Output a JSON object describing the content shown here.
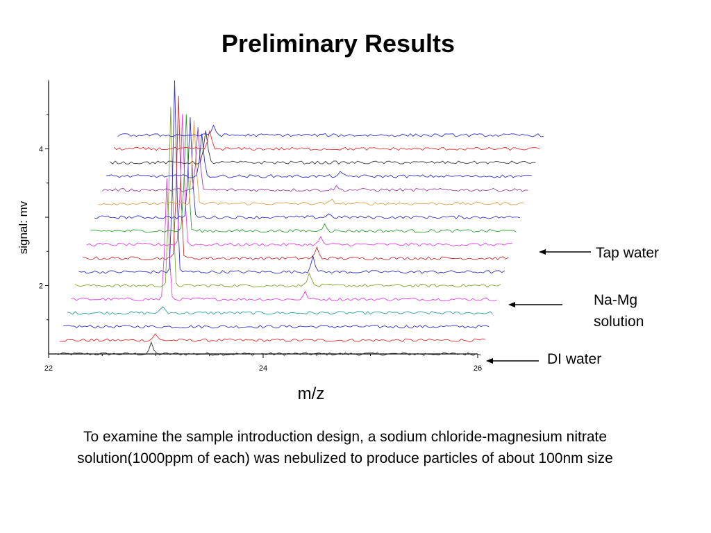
{
  "slide": {
    "title": "Preliminary Results",
    "caption_line1": "To examine the sample introduction design, a sodium chloride-magnesium nitrate",
    "caption_line2": "solution(1000ppm of each) was nebulized to produce particles of about 100nm size"
  },
  "chart_data": {
    "type": "line",
    "style": "waterfall",
    "title": "",
    "xlabel": "m/z",
    "ylabel": "signal: mv",
    "xlim": [
      22,
      26
    ],
    "ylim": [
      1,
      5
    ],
    "x_ticks": [
      "22",
      "24",
      "26"
    ],
    "y_ticks": [
      "2",
      "4"
    ],
    "grid": false,
    "annotations": [
      {
        "text": "Tap water"
      },
      {
        "text": "Na-Mg",
        "text2": "solution"
      },
      {
        "text": "DI water"
      }
    ],
    "series": [
      {
        "color": "#333333",
        "baseline": 1.0,
        "peaks": [
          {
            "x": 22.9,
            "h": 0.15
          }
        ]
      },
      {
        "color": "#e03030",
        "baseline": 1.2,
        "peaks": [
          {
            "x": 22.9,
            "h": 0.1
          }
        ]
      },
      {
        "color": "#3030c0",
        "baseline": 1.4,
        "peaks": []
      },
      {
        "color": "#30a0a0",
        "baseline": 1.6,
        "peaks": [
          {
            "x": 22.9,
            "h": 0.1
          }
        ]
      },
      {
        "color": "#e040e0",
        "baseline": 1.8,
        "peaks": [
          {
            "x": 22.9,
            "h": 1.75
          },
          {
            "x": 24.2,
            "h": 0.1
          }
        ]
      },
      {
        "color": "#80a030",
        "baseline": 2.0,
        "peaks": [
          {
            "x": 22.9,
            "h": 2.6
          },
          {
            "x": 24.2,
            "h": 0.2
          }
        ]
      },
      {
        "color": "#3030c0",
        "baseline": 2.2,
        "peaks": [
          {
            "x": 22.9,
            "h": 2.8
          },
          {
            "x": 24.2,
            "h": 0.25
          }
        ]
      },
      {
        "color": "#c03030",
        "baseline": 2.4,
        "peaks": [
          {
            "x": 22.9,
            "h": 2.4
          },
          {
            "x": 24.2,
            "h": 0.15
          }
        ]
      },
      {
        "color": "#e040e0",
        "baseline": 2.6,
        "peaks": [
          {
            "x": 22.9,
            "h": 1.9
          },
          {
            "x": 24.2,
            "h": 0.1
          }
        ]
      },
      {
        "color": "#30a030",
        "baseline": 2.8,
        "peaks": [
          {
            "x": 22.9,
            "h": 1.7
          },
          {
            "x": 24.2,
            "h": 0.12
          }
        ]
      },
      {
        "color": "#3030c0",
        "baseline": 3.0,
        "peaks": [
          {
            "x": 22.9,
            "h": 1.45
          },
          {
            "x": 24.2,
            "h": 0.05
          }
        ]
      },
      {
        "color": "#e0a050",
        "baseline": 3.2,
        "peaks": [
          {
            "x": 22.9,
            "h": 1.2
          },
          {
            "x": 24.2,
            "h": 0.05
          }
        ]
      },
      {
        "color": "#a040a0",
        "baseline": 3.4,
        "peaks": [
          {
            "x": 22.9,
            "h": 0.9
          },
          {
            "x": 24.2,
            "h": 0.05
          }
        ]
      },
      {
        "color": "#3030c0",
        "baseline": 3.6,
        "peaks": [
          {
            "x": 22.9,
            "h": 0.6
          },
          {
            "x": 24.2,
            "h": 0.05
          }
        ]
      },
      {
        "color": "#333333",
        "baseline": 3.8,
        "peaks": [
          {
            "x": 22.9,
            "h": 0.45
          }
        ]
      },
      {
        "color": "#e03030",
        "baseline": 4.0,
        "peaks": [
          {
            "x": 22.9,
            "h": 0.25
          }
        ]
      },
      {
        "color": "#3030c0",
        "baseline": 4.2,
        "peaks": [
          {
            "x": 22.9,
            "h": 0.15
          }
        ]
      }
    ]
  }
}
